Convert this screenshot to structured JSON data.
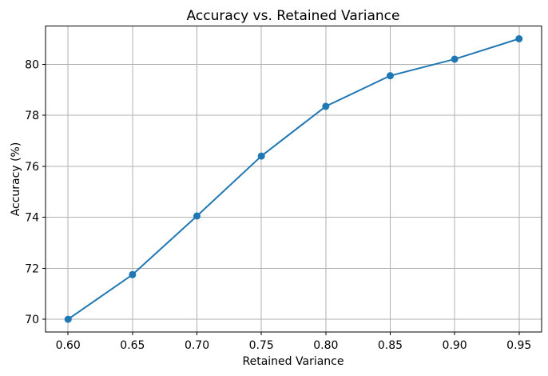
{
  "chart_data": {
    "type": "line",
    "title": "Accuracy vs. Retained Variance",
    "xlabel": "Retained Variance",
    "ylabel": "Accuracy (%)",
    "x": [
      0.6,
      0.65,
      0.7,
      0.75,
      0.8,
      0.85,
      0.9,
      0.95
    ],
    "y": [
      70.0,
      71.75,
      74.05,
      76.4,
      78.35,
      79.55,
      80.2,
      81.0
    ],
    "xlim": [
      0.5825,
      0.9675
    ],
    "ylim": [
      69.5,
      81.5
    ],
    "xticks": {
      "values": [
        0.6,
        0.65,
        0.7,
        0.75,
        0.8,
        0.85,
        0.9,
        0.95
      ],
      "labels": [
        "0.60",
        "0.65",
        "0.70",
        "0.75",
        "0.80",
        "0.85",
        "0.90",
        "0.95"
      ]
    },
    "yticks": {
      "values": [
        70,
        72,
        74,
        76,
        78,
        80
      ],
      "labels": [
        "70",
        "72",
        "74",
        "76",
        "78",
        "80"
      ]
    },
    "grid": true,
    "legend": false,
    "line_color": "#1f77b4",
    "marker_color": "#1f77b4",
    "grid_color": "#b0b0b0",
    "spine_color": "#000000",
    "text_color": "#000000",
    "background": "#ffffff"
  }
}
